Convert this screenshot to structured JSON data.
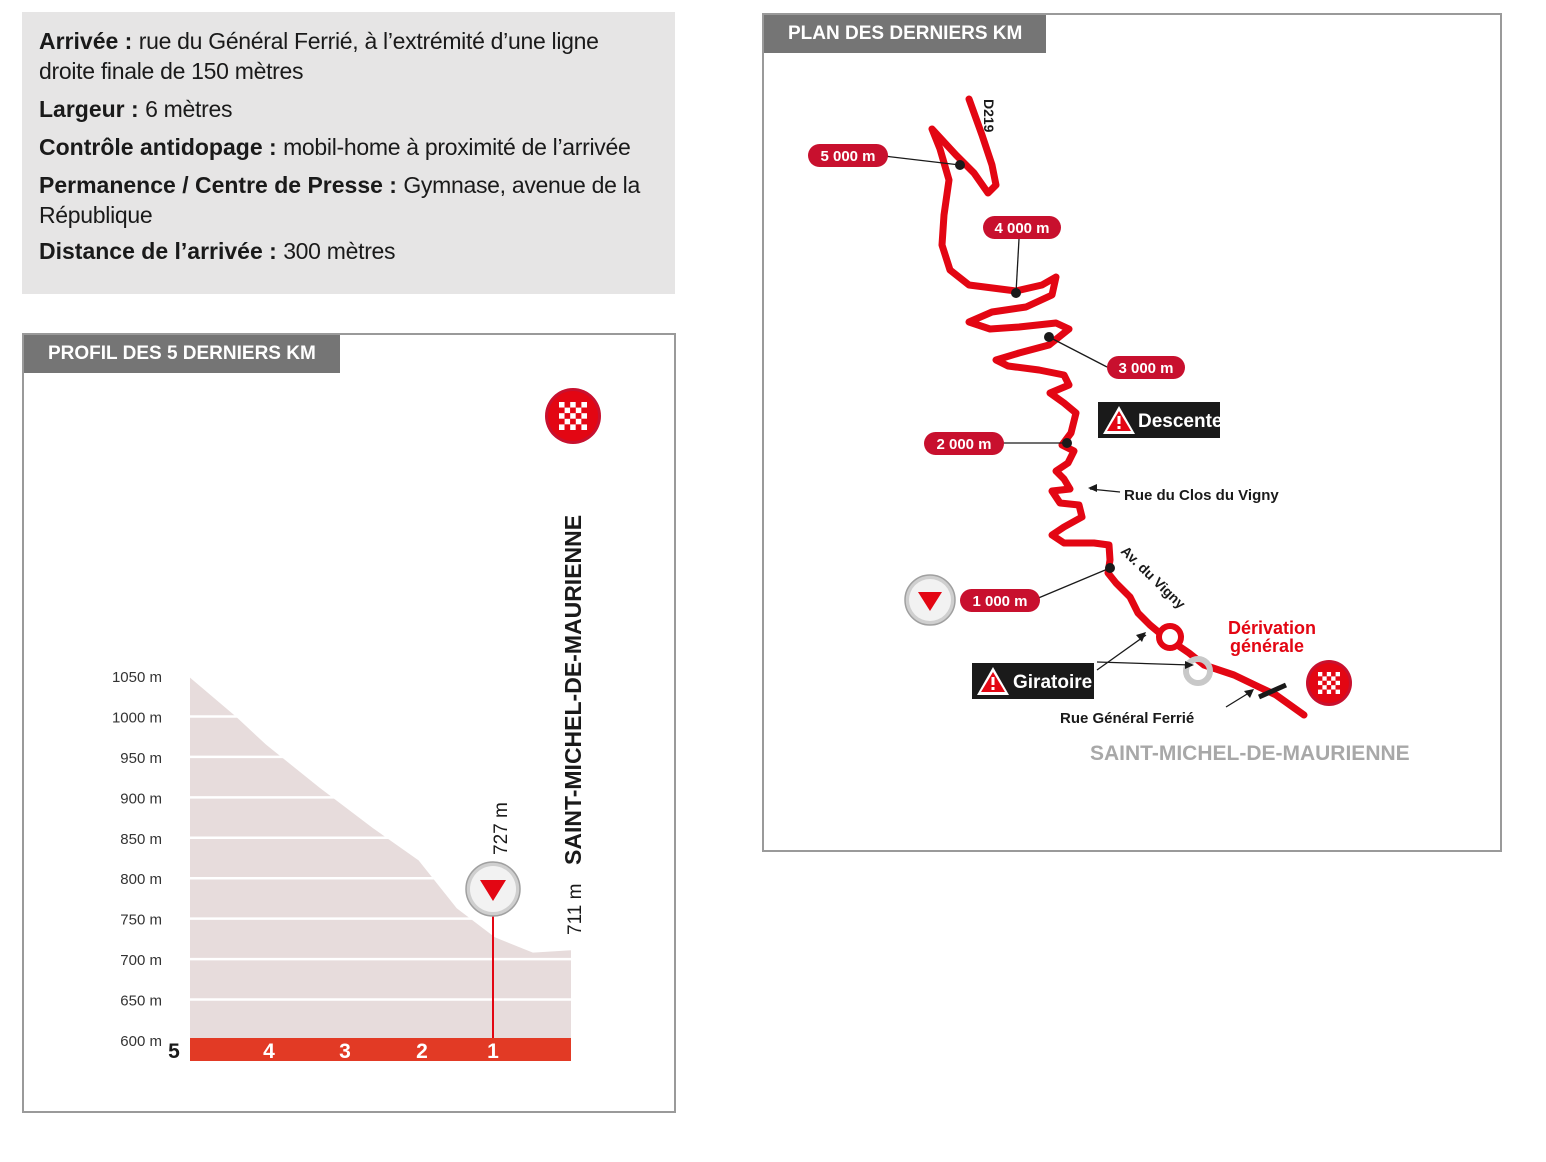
{
  "info": {
    "arrivee_label": "Arrivée :",
    "arrivee_value": "rue du Général Ferrié, à l’extrémité d’une ligne droite finale de 150 mètres",
    "largeur_label": "Largeur :",
    "largeur_value": "6 mètres",
    "controle_label": "Contrôle antidopage :",
    "controle_value": "mobil-home à proximité de l’arrivée",
    "permanence_label": "Permanence / Centre de Presse :",
    "permanence_value": "Gymnase, avenue de la République",
    "distance_label": "Distance de l’arrivée :",
    "distance_value": "300 mètres"
  },
  "profile": {
    "tab_title": "PROFIL DES 5 DERNIERS KM",
    "town_label": "SAINT-MICHEL-DE-MAURIENNE",
    "finish_altitude": "711 m",
    "summit_altitude": "727 m",
    "km_labels": [
      "5",
      "4",
      "3",
      "2",
      "1"
    ],
    "colors": {
      "fill": "#e7dcdc",
      "band": "#e23a25",
      "flamme": "#e30613"
    }
  },
  "chart_data": {
    "type": "area",
    "xlabel": "",
    "ylabel": "",
    "x_range": [
      5,
      0
    ],
    "ylim": [
      600,
      1050
    ],
    "y_ticks": [
      "1050 m",
      "1000 m",
      "950 m",
      "900 m",
      "850 m",
      "800 m",
      "750 m",
      "700 m",
      "650 m",
      "600 m"
    ],
    "x_ticks": [
      "5",
      "4",
      "3",
      "2",
      "1"
    ],
    "grid": true,
    "points": [
      {
        "km": 5.0,
        "alt": 1048
      },
      {
        "km": 4.4,
        "alt": 1000
      },
      {
        "km": 4.0,
        "alt": 965
      },
      {
        "km": 3.3,
        "alt": 912
      },
      {
        "km": 2.6,
        "alt": 862
      },
      {
        "km": 2.0,
        "alt": 822
      },
      {
        "km": 1.5,
        "alt": 763
      },
      {
        "km": 1.0,
        "alt": 727
      },
      {
        "km": 0.5,
        "alt": 708
      },
      {
        "km": 0.0,
        "alt": 711
      }
    ],
    "annotations": [
      {
        "km": 1.0,
        "label": "727 m",
        "marker": "flamme-rouge"
      },
      {
        "km": 0.0,
        "label": "711 m",
        "marker": "finish"
      }
    ]
  },
  "map": {
    "tab_title": "PLAN DES DERNIERS KM",
    "road_label": "D219",
    "distance_markers": [
      "5 000 m",
      "4 000 m",
      "3 000 m",
      "2 000 m",
      "1 000 m"
    ],
    "descente_label": "Descente",
    "giratoire_label": "Giratoire",
    "rue_clos_label": "Rue du Clos du Vigny",
    "av_vigny_label": "Av. du Vigny",
    "derivation_label_1": "Dérivation",
    "derivation_label_2": "générale",
    "rue_ferrie_label": "Rue Général Ferrié",
    "town_label": "SAINT-MICHEL-DE-MAURIENNE",
    "colors": {
      "route": "#e30613",
      "pill": "#c8102e",
      "town": "#a8a8a8",
      "warning_bg": "#1a1a1a"
    }
  }
}
